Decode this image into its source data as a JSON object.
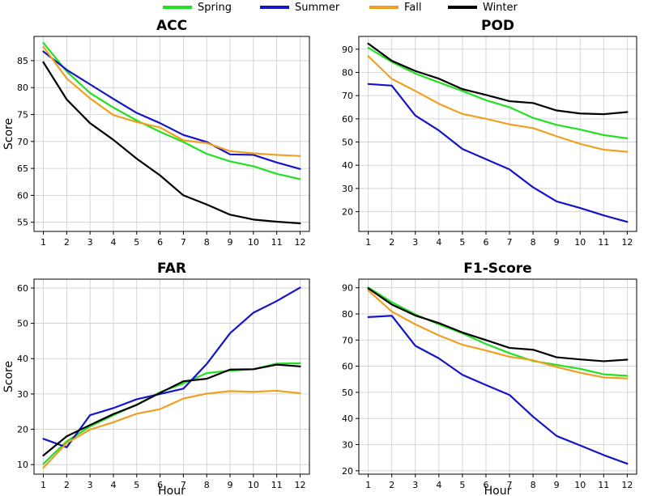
{
  "legend": [
    {
      "name": "Spring",
      "color": "#22e022"
    },
    {
      "name": "Summer",
      "color": "#1414c8"
    },
    {
      "name": "Fall",
      "color": "#f0a020"
    },
    {
      "name": "Winter",
      "color": "#000000"
    }
  ],
  "chart_data": [
    {
      "type": "line",
      "title": "ACC",
      "xlabel": "",
      "ylabel": "Score",
      "x": [
        1,
        2,
        3,
        4,
        5,
        6,
        7,
        8,
        9,
        10,
        11,
        12
      ],
      "ylim": [
        53.3,
        89.5
      ],
      "yticks": [
        55,
        60,
        65,
        70,
        75,
        80,
        85
      ],
      "grid": true,
      "series": [
        {
          "name": "Spring",
          "values": [
            88.3,
            83.0,
            79.0,
            76.3,
            73.9,
            71.8,
            69.9,
            67.7,
            66.3,
            65.4,
            64.0,
            63.0
          ]
        },
        {
          "name": "Summer",
          "values": [
            86.7,
            83.3,
            80.6,
            77.9,
            75.3,
            73.4,
            71.2,
            69.9,
            67.6,
            67.5,
            66.1,
            64.9
          ]
        },
        {
          "name": "Fall",
          "values": [
            87.6,
            81.7,
            78.0,
            74.9,
            73.6,
            72.6,
            70.2,
            69.7,
            68.2,
            67.8,
            67.5,
            67.3
          ]
        },
        {
          "name": "Winter",
          "values": [
            84.7,
            77.8,
            73.4,
            70.3,
            66.8,
            63.7,
            60.0,
            58.3,
            56.4,
            55.5,
            55.1,
            54.8
          ]
        }
      ]
    },
    {
      "type": "line",
      "title": "POD",
      "xlabel": "",
      "ylabel": "",
      "x": [
        1,
        2,
        3,
        4,
        5,
        6,
        7,
        8,
        9,
        10,
        11,
        12
      ],
      "ylim": [
        11.5,
        95.5
      ],
      "yticks": [
        20,
        30,
        40,
        50,
        60,
        70,
        80,
        90
      ],
      "grid": true,
      "series": [
        {
          "name": "Spring",
          "values": [
            90.6,
            84.5,
            79.5,
            75.7,
            72.0,
            68.0,
            65.0,
            60.4,
            57.4,
            55.4,
            53.0,
            51.6
          ]
        },
        {
          "name": "Summer",
          "values": [
            75.0,
            74.3,
            61.4,
            55.0,
            47.0,
            42.6,
            38.2,
            30.5,
            24.4,
            21.6,
            18.4,
            15.6
          ]
        },
        {
          "name": "Fall",
          "values": [
            87.0,
            77.2,
            72.0,
            66.5,
            62.1,
            60.0,
            57.6,
            56.0,
            52.5,
            49.2,
            46.7,
            45.8
          ]
        },
        {
          "name": "Winter",
          "values": [
            92.4,
            85.0,
            80.6,
            77.3,
            72.8,
            70.3,
            67.6,
            66.8,
            63.6,
            62.3,
            62.0,
            62.9
          ]
        }
      ]
    },
    {
      "type": "line",
      "title": "FAR",
      "xlabel": "Hour",
      "ylabel": "Score",
      "x": [
        1,
        2,
        3,
        4,
        5,
        6,
        7,
        8,
        9,
        10,
        11,
        12
      ],
      "ylim": [
        7.3,
        62.5
      ],
      "yticks": [
        10,
        20,
        30,
        40,
        50,
        60
      ],
      "grid": true,
      "series": [
        {
          "name": "Spring",
          "values": [
            10.2,
            16.6,
            20.8,
            24.0,
            27.0,
            30.5,
            33.0,
            35.9,
            36.6,
            37.0,
            38.6,
            38.7
          ]
        },
        {
          "name": "Summer",
          "values": [
            17.3,
            14.9,
            24.0,
            26.0,
            28.5,
            30.0,
            31.5,
            38.5,
            47.2,
            53.0,
            56.3,
            60.1
          ]
        },
        {
          "name": "Fall",
          "values": [
            9.1,
            16.1,
            19.9,
            22.0,
            24.4,
            25.7,
            28.7,
            30.1,
            30.8,
            30.6,
            30.9,
            30.2
          ]
        },
        {
          "name": "Winter",
          "values": [
            12.6,
            18.0,
            21.2,
            24.3,
            26.9,
            30.3,
            33.6,
            34.3,
            36.9,
            37.0,
            38.3,
            37.8
          ]
        }
      ]
    },
    {
      "type": "line",
      "title": "F1-Score",
      "xlabel": "Hour",
      "ylabel": "",
      "x": [
        1,
        2,
        3,
        4,
        5,
        6,
        7,
        8,
        9,
        10,
        11,
        12
      ],
      "ylim": [
        18.7,
        93.3
      ],
      "yticks": [
        20,
        30,
        40,
        50,
        60,
        70,
        80,
        90
      ],
      "grid": true,
      "series": [
        {
          "name": "Spring",
          "values": [
            90.1,
            84.5,
            79.8,
            76.0,
            72.6,
            68.5,
            65.0,
            62.0,
            60.5,
            59.0,
            56.9,
            56.3
          ]
        },
        {
          "name": "Summer",
          "values": [
            78.8,
            79.3,
            67.8,
            63.0,
            56.7,
            52.8,
            49.0,
            40.7,
            33.3,
            29.7,
            26.0,
            22.7
          ]
        },
        {
          "name": "Fall",
          "values": [
            89.0,
            80.9,
            76.0,
            71.8,
            68.2,
            66.0,
            63.6,
            62.3,
            59.7,
            57.5,
            55.7,
            55.3
          ]
        },
        {
          "name": "Winter",
          "values": [
            89.8,
            83.6,
            79.4,
            76.5,
            72.9,
            70.0,
            67.0,
            66.3,
            63.4,
            62.6,
            61.9,
            62.5
          ]
        }
      ]
    }
  ]
}
